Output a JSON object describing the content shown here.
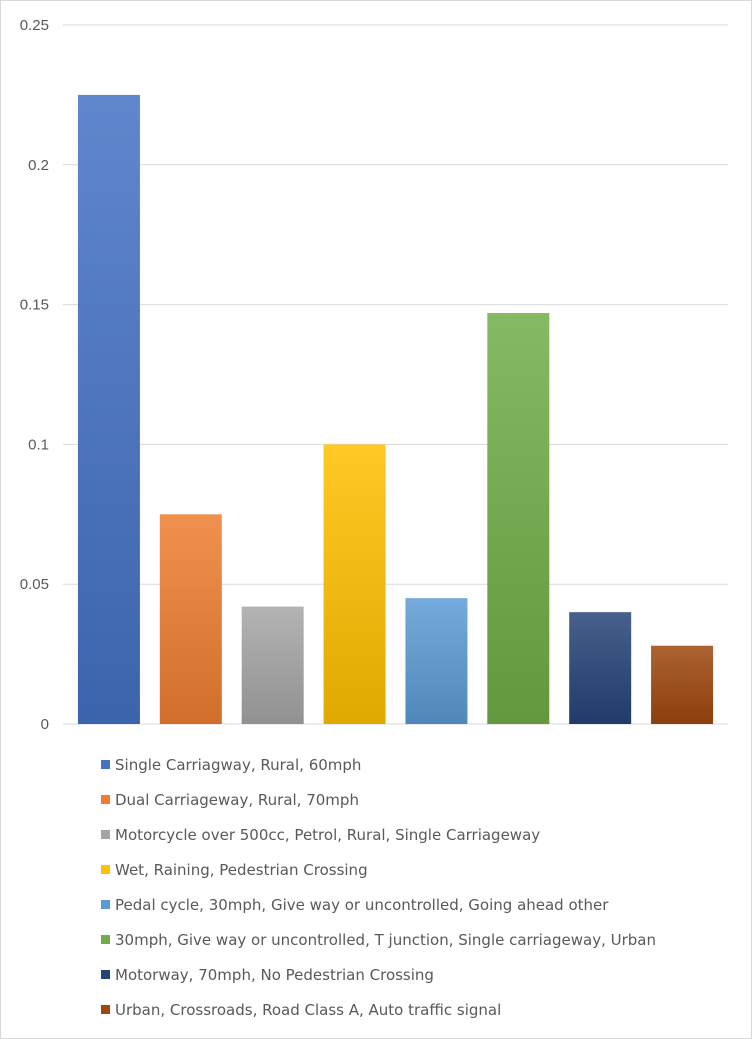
{
  "chart_data": {
    "type": "bar",
    "title": "",
    "xlabel": "",
    "ylabel": "",
    "ylim": [
      0,
      0.25
    ],
    "yticks": [
      "0",
      "0.05",
      "0.1",
      "0.15",
      "0.2",
      "0.25"
    ],
    "grid": true,
    "legend_position": "bottom",
    "bars": [
      {
        "label": "Single Carriagway, Rural, 60mph",
        "value": 0.225,
        "color": "#4472c4"
      },
      {
        "label": "Dual Carriageway, Rural, 70mph",
        "value": 0.075,
        "color": "#ed7d31"
      },
      {
        "label": "Motorcycle over 500cc, Petrol, Rural, Single Carriageway",
        "value": 0.042,
        "color": "#a5a5a5"
      },
      {
        "label": "Wet, Raining, Pedestrian Crossing",
        "value": 0.1,
        "color": "#ffc000"
      },
      {
        "label": "Pedal cycle, 30mph, Give way or uncontrolled, Going ahead other",
        "value": 0.045,
        "color": "#5b9bd5"
      },
      {
        "label": "30mph, Give way or uncontrolled, T junction, Single carriageway, Urban",
        "value": 0.147,
        "color": "#70ad47"
      },
      {
        "label": "Motorway, 70mph, No Pedestrian Crossing",
        "value": 0.04,
        "color": "#264478"
      },
      {
        "label": "Urban, Crossroads, Road Class A, Auto traffic signal",
        "value": 0.028,
        "color": "#9e480e"
      }
    ]
  }
}
